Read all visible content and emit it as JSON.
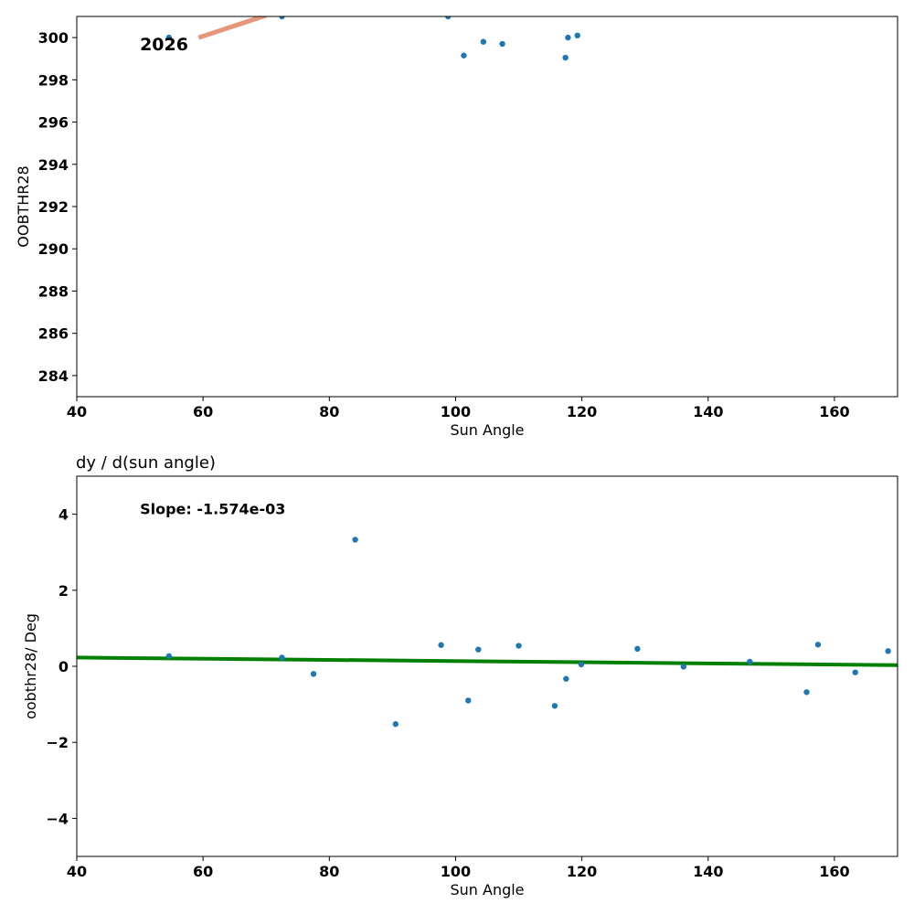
{
  "chart_data": [
    {
      "type": "scatter",
      "xlabel": "Sun Angle",
      "ylabel": "OOBTHR28",
      "title": "",
      "xlim": [
        40,
        170
      ],
      "ylim": [
        283,
        301
      ],
      "xticks": [
        "40",
        "60",
        "80",
        "100",
        "120",
        "140",
        "160"
      ],
      "yticks": [
        "284",
        "286",
        "288",
        "290",
        "292",
        "294",
        "296",
        "298",
        "300"
      ],
      "grid": false,
      "point_color": "#1f77b4",
      "line_color": "#e8967a",
      "series": [
        {
          "x": [
            54.6,
            72.5,
            98.8,
            101.3,
            104.4,
            107.4,
            117.4,
            117.8,
            119.3
          ],
          "y": [
            300.0,
            301.0,
            301.0,
            299.15,
            299.8,
            299.7,
            299.05,
            300.0,
            300.1
          ]
        }
      ],
      "trend_line": {
        "x": [
          59.3,
          70.0
        ],
        "y": [
          300.0,
          301.05
        ]
      },
      "annotations": [
        {
          "text": "2026",
          "x": 50,
          "y": 299.4
        }
      ]
    },
    {
      "type": "scatter",
      "title": "dy / d(sun angle)",
      "xlabel": "Sun Angle",
      "ylabel": "oobthr28/ Deg",
      "xlim": [
        40,
        170
      ],
      "ylim": [
        -5,
        5
      ],
      "xticks": [
        "40",
        "60",
        "80",
        "100",
        "120",
        "140",
        "160"
      ],
      "yticks": [
        "−4",
        "−2",
        "0",
        "2",
        "4"
      ],
      "grid": false,
      "point_color": "#1f77b4",
      "line_color": "#008000",
      "series": [
        {
          "x": [
            54.6,
            72.5,
            77.5,
            84.1,
            90.5,
            97.7,
            102.0,
            103.6,
            110.0,
            115.7,
            117.5,
            119.9,
            128.8,
            136.1,
            146.6,
            155.6,
            157.4,
            163.3,
            168.5
          ],
          "y": [
            0.27,
            0.23,
            -0.2,
            3.33,
            -1.52,
            0.56,
            -0.9,
            0.44,
            0.54,
            -1.04,
            -0.33,
            0.05,
            0.46,
            -0.01,
            0.12,
            -0.68,
            0.57,
            -0.16,
            0.4
          ]
        }
      ],
      "fit_line": {
        "x": [
          40,
          170
        ],
        "y": [
          0.23,
          0.03
        ]
      },
      "annotations": [
        {
          "text": "Slope: -1.574e-03",
          "x": 50,
          "y": 4.0
        }
      ]
    }
  ]
}
